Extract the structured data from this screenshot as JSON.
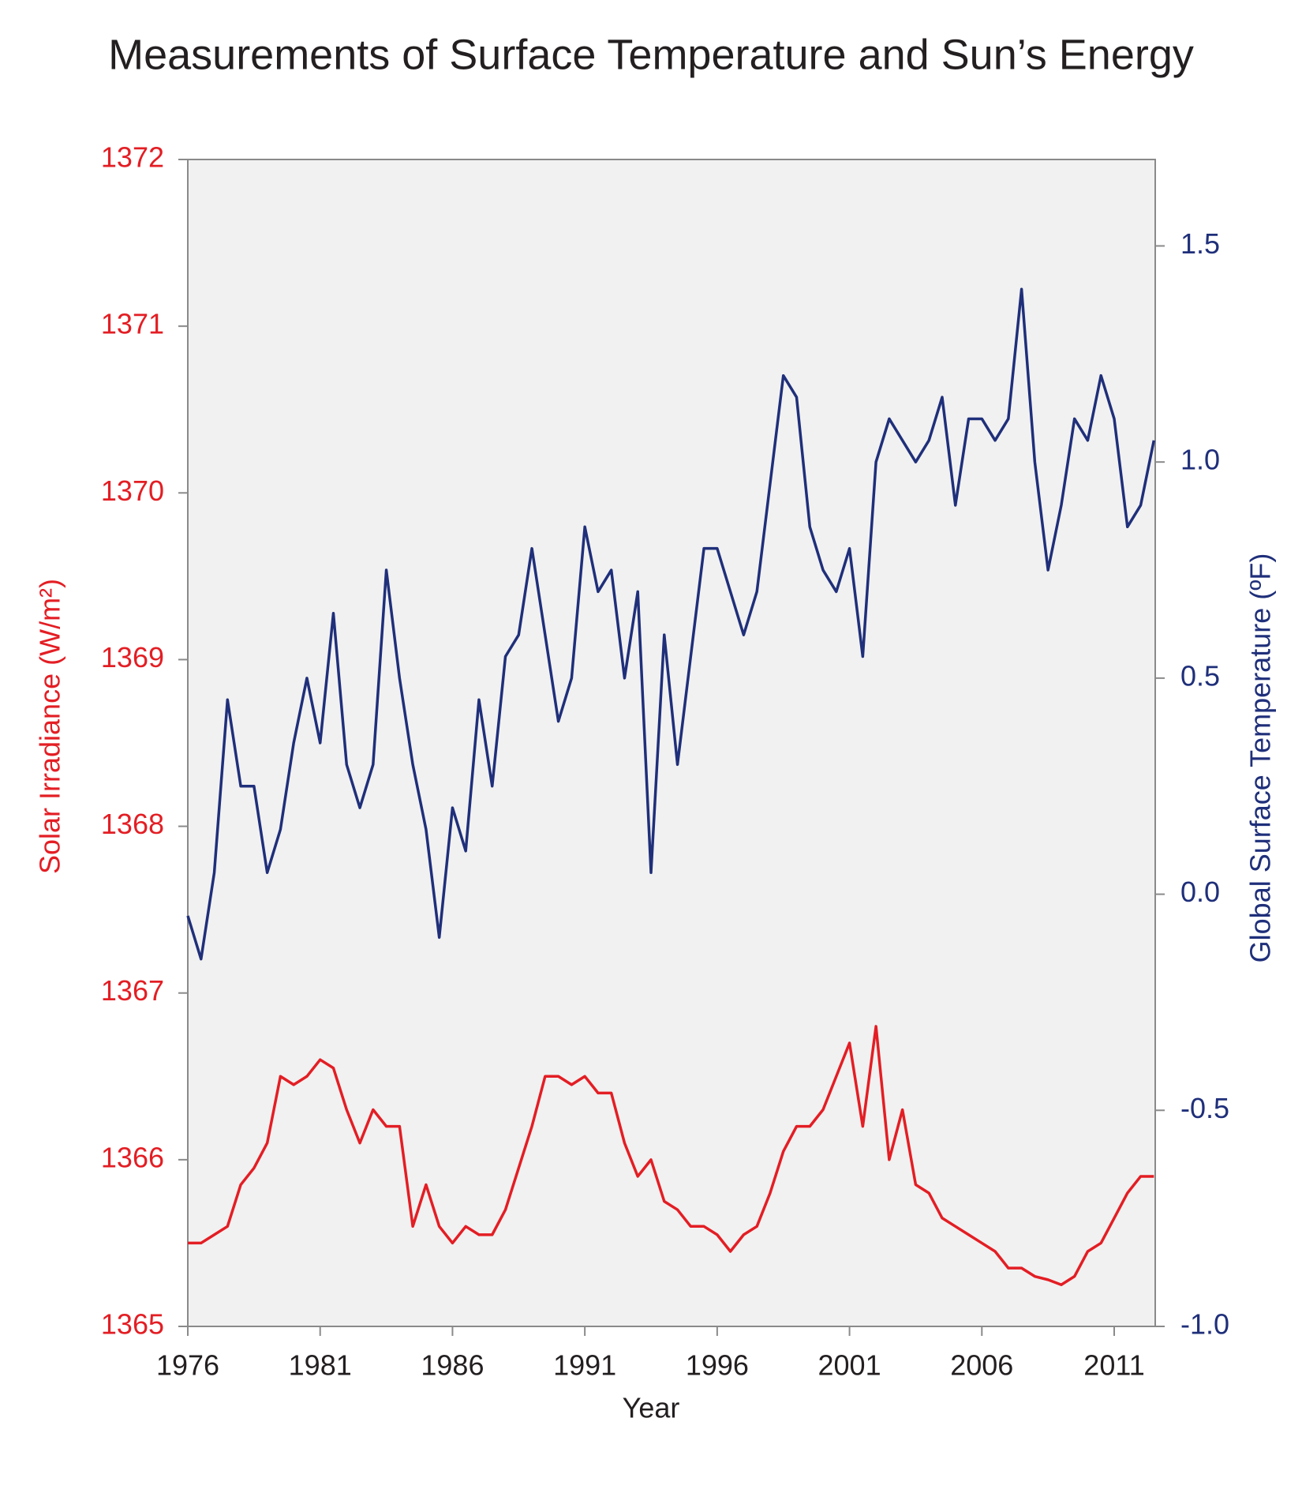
{
  "chart_data": {
    "type": "line",
    "title": "Measurements of Surface Temperature and Sun’s Energy",
    "x_label": "Year",
    "y_label": "Solar Irradiance (W/m²)",
    "y2_label": "Global Surface Temperature (ºF)",
    "xlim": [
      1976,
      2012.55
    ],
    "xticks": [
      1976,
      1981,
      1986,
      1991,
      1996,
      2001,
      2006,
      2011
    ],
    "ylim": [
      1365,
      1372
    ],
    "yticks": [
      1365,
      1366,
      1367,
      1368,
      1369,
      1370,
      1371,
      1372
    ],
    "y2lim": [
      -1,
      1.7
    ],
    "y2ticks": [
      {
        "value": -1,
        "label": "-1.0"
      },
      -0.5,
      {
        "value": 0,
        "label": "0.0"
      },
      0.5,
      {
        "value": 1,
        "label": "1.0"
      },
      1.5
    ],
    "x": [
      1976.0,
      1976.5,
      1977.0,
      1977.5,
      1978.0,
      1978.5,
      1979.0,
      1979.5,
      1980.0,
      1980.5,
      1981.0,
      1981.5,
      1982.0,
      1982.5,
      1983.0,
      1983.5,
      1984.0,
      1984.5,
      1985.0,
      1985.5,
      1986.0,
      1986.5,
      1987.0,
      1987.5,
      1988.0,
      1988.5,
      1989.0,
      1989.5,
      1990.0,
      1990.5,
      1991.0,
      1991.5,
      1992.0,
      1992.5,
      1993.0,
      1993.5,
      1994.0,
      1994.5,
      1995.0,
      1995.5,
      1996.0,
      1996.5,
      1997.0,
      1997.5,
      1998.0,
      1998.5,
      1999.0,
      1999.5,
      2000.0,
      2000.5,
      2001.0,
      2001.5,
      2002.0,
      2002.5,
      2003.0,
      2003.5,
      2004.0,
      2004.5,
      2005.0,
      2005.5,
      2006.0,
      2006.5,
      2007.0,
      2007.5,
      2008.0,
      2008.5,
      2009.0,
      2009.5,
      2010.0,
      2010.5,
      2011.0,
      2011.5,
      2012.0,
      2012.5
    ],
    "series": [
      {
        "color": "#1f2f7a",
        "axis": "y2",
        "values": [
          -0.05,
          -0.15,
          0.05,
          0.45,
          0.25,
          0.25,
          0.05,
          0.15,
          0.35,
          0.5,
          0.35,
          0.65,
          0.3,
          0.2,
          0.3,
          0.75,
          0.5,
          0.3,
          0.15,
          -0.1,
          0.2,
          0.1,
          0.45,
          0.25,
          0.55,
          0.6,
          0.8,
          0.6,
          0.4,
          0.5,
          0.85,
          0.7,
          0.75,
          0.5,
          0.7,
          0.05,
          0.6,
          0.3,
          0.55,
          0.8,
          0.8,
          0.7,
          0.6,
          0.7,
          0.95,
          1.2,
          1.15,
          0.85,
          0.75,
          0.7,
          0.8,
          0.55,
          1.0,
          1.1,
          1.05,
          1.0,
          1.05,
          1.15,
          0.9,
          1.1,
          1.1,
          1.05,
          1.1,
          1.4,
          1.0,
          0.75,
          0.9,
          1.1,
          1.05,
          1.2,
          1.1,
          0.85,
          0.9,
          1.05
        ]
      },
      {
        "color": "#e31e24",
        "values": [
          1365.5,
          1365.5,
          1365.55,
          1365.6,
          1365.85,
          1365.95,
          1366.1,
          1366.5,
          1366.45,
          1366.5,
          1366.6,
          1366.55,
          1366.3,
          1366.1,
          1366.3,
          1366.2,
          1366.2,
          1365.6,
          1365.85,
          1365.6,
          1365.5,
          1365.6,
          1365.55,
          1365.55,
          1365.7,
          1365.95,
          1366.2,
          1366.5,
          1366.5,
          1366.45,
          1366.5,
          1366.4,
          1366.4,
          1366.1,
          1365.9,
          1366.0,
          1365.75,
          1365.7,
          1365.6,
          1365.6,
          1365.55,
          1365.45,
          1365.55,
          1365.6,
          1365.8,
          1366.05,
          1366.2,
          1366.2,
          1366.3,
          1366.5,
          1366.7,
          1366.2,
          1366.8,
          1366.0,
          1366.3,
          1365.85,
          1365.8,
          1365.65,
          1365.6,
          1365.55,
          1365.5,
          1365.45,
          1365.35,
          1365.35,
          1365.3,
          1365.28,
          1365.25,
          1365.3,
          1365.45,
          1365.5,
          1365.65,
          1365.8,
          1365.9,
          1365.9
        ]
      }
    ]
  }
}
